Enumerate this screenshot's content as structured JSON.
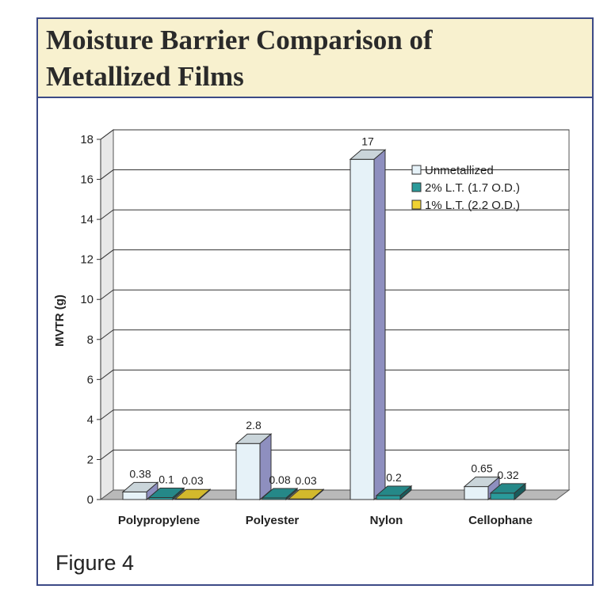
{
  "figure": {
    "caption": "Figure 4"
  },
  "chart_data": {
    "type": "bar",
    "title": "Moisture Barrier Comparison of Metallized Films",
    "ylabel": "MVTR (g)",
    "xlabel": "",
    "categories": [
      "Polypropylene",
      "Polyester",
      "Nylon",
      "Cellophane"
    ],
    "ylim": [
      0,
      18
    ],
    "yticks": [
      0,
      2,
      4,
      6,
      8,
      10,
      12,
      14,
      16,
      18
    ],
    "grid": true,
    "legend_position": "top-right",
    "series": [
      {
        "name": "Unmetallized",
        "color": "#e6f2f8",
        "values": [
          0.38,
          2.8,
          17,
          0.65
        ],
        "labels": [
          "0.38",
          "2.8",
          "17",
          "0.65"
        ]
      },
      {
        "name": "2% L.T. (1.7 O.D.)",
        "color": "#2a9a9a",
        "values": [
          0.1,
          0.08,
          0.2,
          0.32
        ],
        "labels": [
          "0.1",
          "0.08",
          "0.2",
          "0.32"
        ]
      },
      {
        "name": "1% L.T. (2.2 O.D.)",
        "color": "#f0d232",
        "values": [
          0.03,
          0.03,
          null,
          null
        ],
        "labels": [
          "0.03",
          "0.03",
          "",
          ""
        ]
      }
    ]
  }
}
